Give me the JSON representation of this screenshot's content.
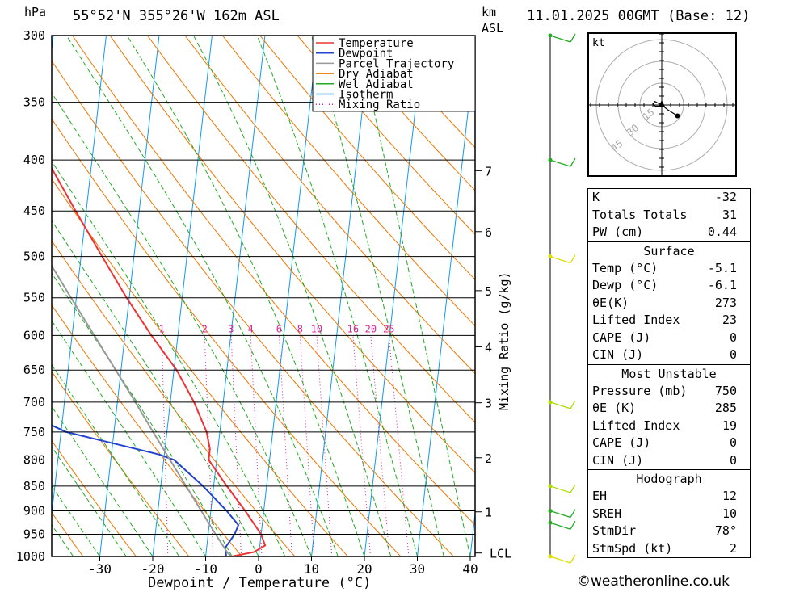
{
  "header": {
    "pressure_unit": "hPa",
    "location": "55°52'N  355°26'W  162m  ASL",
    "height_unit_top": "km",
    "height_unit_bottom": "ASL",
    "valid_time": "11.01.2025  00GMT  (Base: 12)"
  },
  "chart_data": {
    "type": "line",
    "xlabel": "Dewpoint / Temperature (°C)",
    "x_ticks": [
      -30,
      -20,
      -10,
      0,
      10,
      20,
      30,
      40
    ],
    "pressure_levels": [
      1000,
      950,
      900,
      850,
      800,
      750,
      700,
      650,
      600,
      550,
      500,
      450,
      400,
      350,
      300
    ],
    "ylim": [
      1000,
      300
    ],
    "height_km_ticks": [
      {
        "label": "LCL",
        "p": 992
      },
      {
        "label": "1",
        "p": 902
      },
      {
        "label": "2",
        "p": 796
      },
      {
        "label": "3",
        "p": 701
      },
      {
        "label": "4",
        "p": 616
      },
      {
        "label": "5",
        "p": 541
      },
      {
        "label": "6",
        "p": 472
      },
      {
        "label": "7",
        "p": 410
      }
    ],
    "mixing_ratio_label": "Mixing Ratio (g/kg)",
    "mixing_ratio_values": [
      "1",
      "2",
      "3",
      "4",
      "6",
      "8",
      "10",
      "16",
      "20",
      "25"
    ],
    "legend": {
      "position": "top-right",
      "entries": [
        {
          "name": "Temperature",
          "color": "#ee3333",
          "style": "solid"
        },
        {
          "name": "Dewpoint",
          "color": "#2244cc",
          "style": "solid"
        },
        {
          "name": "Parcel Trajectory",
          "color": "#999999",
          "style": "solid"
        },
        {
          "name": "Dry Adiabat",
          "color": "#ee7700",
          "style": "solid"
        },
        {
          "name": "Wet Adiabat",
          "color": "#22aa22",
          "style": "solid"
        },
        {
          "name": "Isotherm",
          "color": "#1199ee",
          "style": "solid"
        },
        {
          "name": "Mixing Ratio",
          "color": "#dd2299",
          "style": "dotted"
        }
      ]
    },
    "series": [
      {
        "name": "Temperature",
        "color": "#ee3333",
        "points": [
          {
            "p": 1000,
            "t": -5.1
          },
          {
            "p": 990,
            "t": -1.0
          },
          {
            "p": 975,
            "t": 1.0
          },
          {
            "p": 950,
            "t": 0.0
          },
          {
            "p": 900,
            "t": -3.5
          },
          {
            "p": 850,
            "t": -7.5
          },
          {
            "p": 800,
            "t": -11.5
          },
          {
            "p": 780,
            "t": -11.5
          },
          {
            "p": 750,
            "t": -12.5
          },
          {
            "p": 700,
            "t": -15.5
          },
          {
            "p": 650,
            "t": -19.5
          },
          {
            "p": 600,
            "t": -25.0
          },
          {
            "p": 550,
            "t": -30.5
          },
          {
            "p": 500,
            "t": -36.0
          },
          {
            "p": 450,
            "t": -42.0
          },
          {
            "p": 400,
            "t": -48.5
          },
          {
            "p": 350,
            "t": -55.5
          },
          {
            "p": 300,
            "t": -61.0
          }
        ]
      },
      {
        "name": "Dewpoint",
        "color": "#2244cc",
        "points": [
          {
            "p": 1000,
            "t": -6.1
          },
          {
            "p": 980,
            "t": -6.5
          },
          {
            "p": 950,
            "t": -5.0
          },
          {
            "p": 930,
            "t": -4.5
          },
          {
            "p": 900,
            "t": -7.0
          },
          {
            "p": 850,
            "t": -12.0
          },
          {
            "p": 800,
            "t": -18.0
          },
          {
            "p": 790,
            "t": -21.0
          },
          {
            "p": 750,
            "t": -39.0
          },
          {
            "p": 700,
            "t": -52.0
          },
          {
            "p": 650,
            "t": -52.0
          },
          {
            "p": 600,
            "t": -55.0
          },
          {
            "p": 550,
            "t": -57.0
          },
          {
            "p": 500,
            "t": -61.0
          },
          {
            "p": 450,
            "t": -63.0
          },
          {
            "p": 400,
            "t": -72.0
          },
          {
            "p": 350,
            "t": -74.0
          },
          {
            "p": 300,
            "t": -76.0
          }
        ]
      },
      {
        "name": "Parcel Trajectory",
        "color": "#999999",
        "points": [
          {
            "p": 1000,
            "t": -5.1
          },
          {
            "p": 992,
            "t": -5.9
          },
          {
            "p": 950,
            "t": -8.6
          },
          {
            "p": 900,
            "t": -11.8
          },
          {
            "p": 850,
            "t": -15.2
          },
          {
            "p": 800,
            "t": -18.8
          },
          {
            "p": 750,
            "t": -22.6
          },
          {
            "p": 700,
            "t": -26.6
          },
          {
            "p": 650,
            "t": -31.0
          },
          {
            "p": 600,
            "t": -35.8
          },
          {
            "p": 550,
            "t": -41.0
          },
          {
            "p": 500,
            "t": -46.6
          },
          {
            "p": 450,
            "t": -52.6
          },
          {
            "p": 400,
            "t": -59.0
          },
          {
            "p": 350,
            "t": -66.0
          },
          {
            "p": 300,
            "t": -73.0
          }
        ]
      }
    ],
    "wind_barbs": [
      {
        "p": 1000,
        "color": "#dddd00"
      },
      {
        "p": 925,
        "color": "#22aa22"
      },
      {
        "p": 900,
        "color": "#22aa22"
      },
      {
        "p": 850,
        "color": "#aadd00"
      },
      {
        "p": 700,
        "color": "#aadd00"
      },
      {
        "p": 500,
        "color": "#dddd00"
      },
      {
        "p": 400,
        "color": "#22aa22"
      },
      {
        "p": 300,
        "color": "#22aa22"
      }
    ],
    "hodograph": {
      "unit": "kt",
      "ring_labels": [
        "15",
        "30",
        "45"
      ],
      "trace": [
        [
          0,
          0
        ],
        [
          -2,
          1
        ],
        [
          -6,
          3
        ],
        [
          -7,
          0
        ],
        [
          -5,
          -1
        ],
        [
          -2,
          -1
        ],
        [
          0,
          0
        ],
        [
          5,
          -4
        ],
        [
          13,
          -9
        ]
      ]
    }
  },
  "indices": {
    "top": [
      {
        "label": "K",
        "value": "-32"
      },
      {
        "label": "Totals Totals",
        "value": "31"
      },
      {
        "label": "PW (cm)",
        "value": "0.44"
      }
    ],
    "surface": {
      "title": "Surface",
      "rows": [
        {
          "label": "Temp (°C)",
          "value": "-5.1"
        },
        {
          "label": "Dewp (°C)",
          "value": "-6.1"
        },
        {
          "label": "θE(K)",
          "value": "273"
        },
        {
          "label": "Lifted Index",
          "value": "23"
        },
        {
          "label": "CAPE (J)",
          "value": "0"
        },
        {
          "label": "CIN (J)",
          "value": "0"
        }
      ]
    },
    "most_unstable": {
      "title": "Most Unstable",
      "rows": [
        {
          "label": "Pressure (mb)",
          "value": "750"
        },
        {
          "label": "θE (K)",
          "value": "285"
        },
        {
          "label": "Lifted Index",
          "value": "19"
        },
        {
          "label": "CAPE (J)",
          "value": "0"
        },
        {
          "label": "CIN (J)",
          "value": "0"
        }
      ]
    },
    "hodograph": {
      "title": "Hodograph",
      "rows": [
        {
          "label": "EH",
          "value": "12"
        },
        {
          "label": "SREH",
          "value": "10"
        },
        {
          "label": "StmDir",
          "value": "78°"
        },
        {
          "label": "StmSpd (kt)",
          "value": "2"
        }
      ]
    }
  },
  "footer": {
    "copyright": "©weatheronline.co.uk"
  }
}
